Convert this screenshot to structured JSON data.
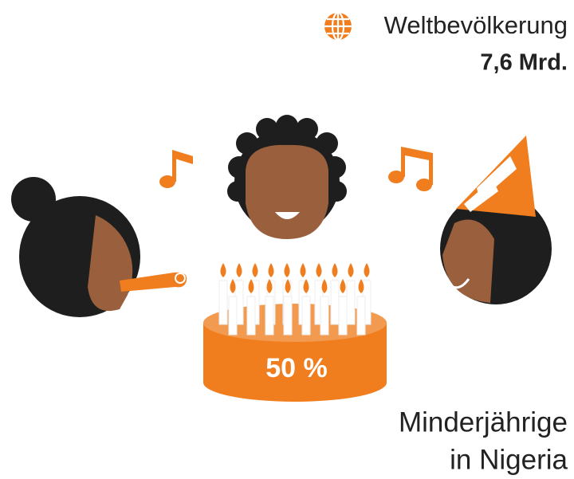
{
  "header": {
    "title": "Weltbevölkerung",
    "value": "7,6 Mrd."
  },
  "cake": {
    "label": "50 %"
  },
  "caption": {
    "lines": [
      "Minderjährige",
      "in Nigeria"
    ]
  }
}
